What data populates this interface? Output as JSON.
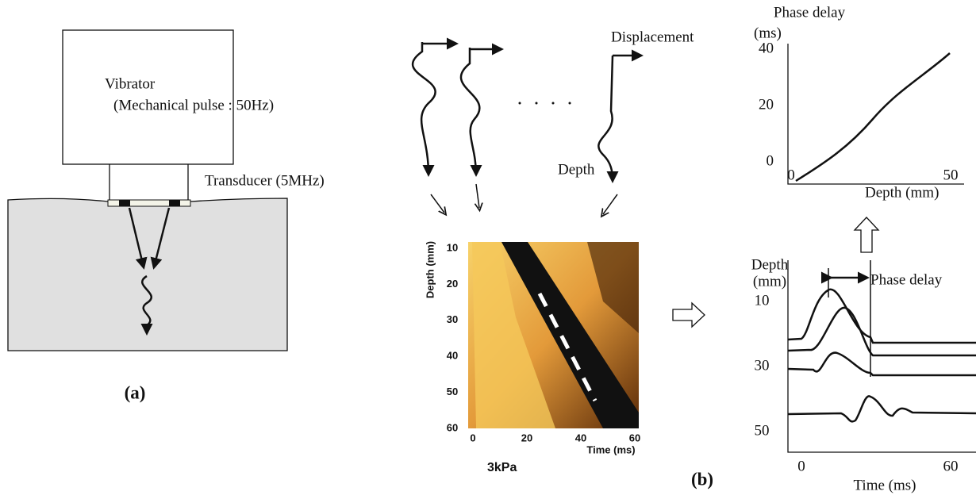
{
  "panel_a": {
    "vibrator": "Vibrator",
    "pulse": "(Mechanical pulse : 50Hz)",
    "transducer": "Transducer (5MHz)",
    "label": "(a)"
  },
  "panel_b": {
    "label": "(b)",
    "waves": {
      "displacement": "Displacement",
      "depth": "Depth"
    },
    "map": {
      "y_title": "Depth (mm)",
      "yticks": [
        "10",
        "20",
        "30",
        "40",
        "50",
        "60"
      ],
      "xticks": [
        "0",
        "20",
        "40",
        "60"
      ],
      "x_title": "Time (ms)",
      "caption": "3kPa"
    },
    "delay_plot": {
      "y_title_1": "Phase delay",
      "y_title_2": "(ms)",
      "yticks": [
        "40",
        "20",
        "0"
      ],
      "xticks": [
        "0",
        "50"
      ],
      "x_title": "Depth (mm)"
    },
    "wave_plot": {
      "y_title_1": "Depth",
      "y_title_2": "(mm)",
      "yticks": [
        "10",
        "30",
        "50"
      ],
      "annotation": "Phase delay",
      "xticks": [
        "0",
        "60"
      ],
      "x_title": "Time (ms)"
    }
  }
}
